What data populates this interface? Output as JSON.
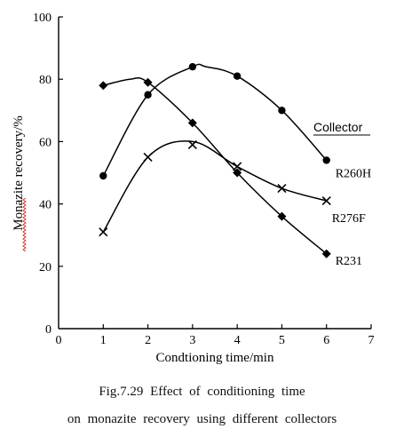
{
  "chart_data": {
    "type": "line",
    "xlabel": "Condtioning time/min",
    "ylabel": "Monazite recovery/%",
    "xlim": [
      0,
      7
    ],
    "ylim": [
      0,
      100
    ],
    "x_ticks": [
      "0",
      "1",
      "2",
      "3",
      "4",
      "5",
      "6",
      "7"
    ],
    "y_ticks": [
      "0",
      "20",
      "40",
      "60",
      "80",
      "100"
    ],
    "grid": false,
    "legend_title": "Collector",
    "x": [
      1,
      2,
      3,
      4,
      5,
      6
    ],
    "series": [
      {
        "name": "R260H",
        "marker": "circle",
        "values": [
          49,
          75,
          84,
          81,
          70,
          54
        ],
        "curve_peak": [
          3.3,
          84
        ]
      },
      {
        "name": "R276F",
        "marker": "cross",
        "values": [
          31,
          55,
          59,
          52,
          45,
          41
        ],
        "curve_peak": [
          3.0,
          60
        ]
      },
      {
        "name": "R231",
        "marker": "diamond",
        "values": [
          78,
          79,
          66,
          50,
          36,
          24
        ],
        "curve_peak": [
          1.6,
          80
        ]
      }
    ]
  },
  "caption": {
    "line1": "Fig.7.29   Effect   of   conditioning   time",
    "line2": "on  monazite  recovery  using  different  collectors"
  }
}
